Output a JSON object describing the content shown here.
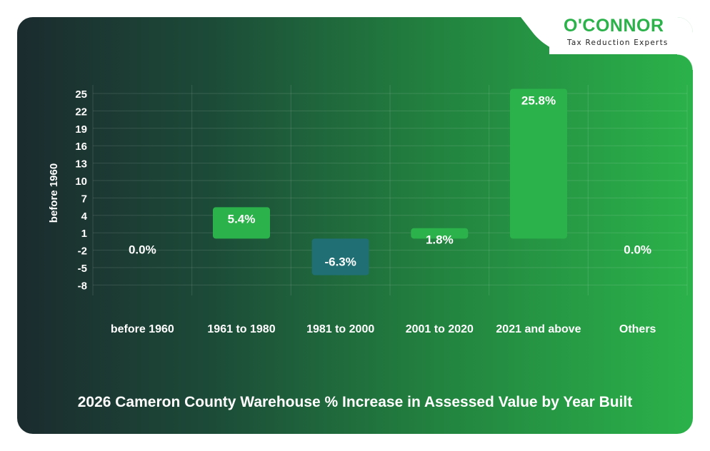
{
  "brand": {
    "name": "O'CONNOR",
    "tagline": "Tax Reduction Experts",
    "color": "#2bb24a"
  },
  "chart_data": {
    "type": "bar",
    "title": "2026 Cameron County Warehouse % Increase in Assessed Value by Year Built",
    "ylabel": "before 1960",
    "xlabel": "",
    "categories": [
      "before 1960",
      "1961 to 1980",
      "1981 to 2000",
      "2001 to 2020",
      "2021 and above",
      "Others"
    ],
    "values": [
      0.0,
      5.4,
      -6.3,
      1.8,
      25.8,
      0.0
    ],
    "data_labels": [
      "0.0%",
      "5.4%",
      "-6.3%",
      "1.8%",
      "25.8%",
      "0.0%"
    ],
    "yticks": [
      25,
      22,
      19,
      16,
      13,
      10,
      7,
      4,
      1,
      -2,
      -5,
      -8
    ],
    "ylim": [
      -8,
      25
    ],
    "grid": true,
    "colors": {
      "positive": "#2bb24a",
      "negative": "#1f6f74",
      "text": "#ffffff",
      "grid": "rgba(255,255,255,0.12)"
    }
  }
}
